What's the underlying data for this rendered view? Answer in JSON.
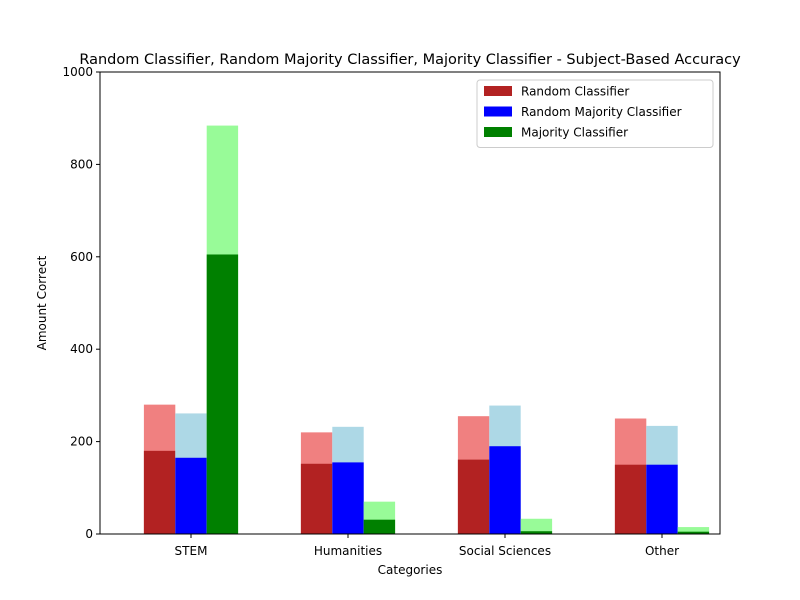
{
  "chart_data": {
    "type": "bar",
    "title": "Random Classifier, Random Majority Classifier, Majority Classifier - Subject-Based Accuracy",
    "xlabel": "Categories",
    "ylabel": "Amount Correct",
    "categories": [
      "STEM",
      "Humanities",
      "Social Sciences",
      "Other"
    ],
    "ylim": [
      0,
      1000
    ],
    "yticks": [
      0,
      200,
      400,
      600,
      800,
      1000
    ],
    "grid": false,
    "legend_position": "top-right",
    "stacked_overlay": true,
    "series": [
      {
        "name": "Random Classifier",
        "values": [
          180,
          152,
          161,
          150
        ],
        "totals": [
          280,
          220,
          255,
          250
        ],
        "color": "#b22222",
        "light_color": "#f08080"
      },
      {
        "name": "Random Majority Classifier",
        "values": [
          165,
          155,
          190,
          150
        ],
        "totals": [
          261,
          232,
          278,
          234
        ],
        "color": "#0000ff",
        "light_color": "#add8e6"
      },
      {
        "name": "Majority Classifier",
        "values": [
          605,
          31,
          6,
          5
        ],
        "totals": [
          884,
          70,
          33,
          15
        ],
        "color": "#008000",
        "light_color": "#98fb98"
      }
    ]
  }
}
